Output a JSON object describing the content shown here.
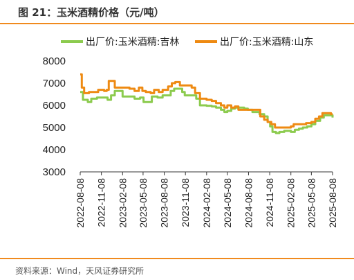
{
  "header": {
    "title": "图 21：玉米酒精价格（元/吨）"
  },
  "footer": {
    "source": "资料来源：Wind，天风证券研究所"
  },
  "colors": {
    "accent": "#F08A1E",
    "jilin": "#8CCB4E",
    "shandong": "#EE8A12"
  },
  "chart_data": {
    "type": "line",
    "title": "",
    "xlabel": "",
    "ylabel": "",
    "ylim": [
      3000,
      8000
    ],
    "yticks": [
      3000,
      4000,
      5000,
      6000,
      7000,
      8000
    ],
    "xticks": [
      "2022-08-08",
      "2022-11-08",
      "2023-02-08",
      "2023-05-08",
      "2023-08-08",
      "2023-11-08",
      "2024-02-08",
      "2024-05-08",
      "2024-08-08",
      "2024-11-08",
      "2025-02-08",
      "2025-05-08",
      "2025-08-08"
    ],
    "xlim": [
      "2022-08-08",
      "2025-08-08"
    ],
    "legend": "top",
    "grid": false,
    "series": [
      {
        "name": "出厂价:玉米酒精:吉林",
        "color": "#8CCB4E",
        "points": [
          [
            "2022-08-08",
            6600
          ],
          [
            "2022-08-20",
            6250
          ],
          [
            "2022-09-10",
            6150
          ],
          [
            "2022-09-25",
            6300
          ],
          [
            "2022-10-20",
            6350
          ],
          [
            "2022-11-20",
            6350
          ],
          [
            "2022-12-05",
            6250
          ],
          [
            "2022-12-20",
            6450
          ],
          [
            "2023-01-05",
            6650
          ],
          [
            "2023-01-25",
            6650
          ],
          [
            "2023-02-08",
            6400
          ],
          [
            "2023-03-20",
            6400
          ],
          [
            "2023-04-01",
            6300
          ],
          [
            "2023-04-25",
            6350
          ],
          [
            "2023-05-10",
            6150
          ],
          [
            "2023-06-01",
            6150
          ],
          [
            "2023-06-15",
            6400
          ],
          [
            "2023-07-10",
            6350
          ],
          [
            "2023-08-01",
            6450
          ],
          [
            "2023-08-20",
            6450
          ],
          [
            "2023-09-05",
            6650
          ],
          [
            "2023-09-20",
            6750
          ],
          [
            "2023-10-10",
            6750
          ],
          [
            "2023-10-25",
            6600
          ],
          [
            "2023-11-05",
            6450
          ],
          [
            "2023-12-10",
            6450
          ],
          [
            "2023-12-25",
            6300
          ],
          [
            "2024-01-10",
            6000
          ],
          [
            "2024-02-08",
            5980
          ],
          [
            "2024-03-01",
            5950
          ],
          [
            "2024-03-20",
            5900
          ],
          [
            "2024-04-10",
            5800
          ],
          [
            "2024-04-25",
            5700
          ],
          [
            "2024-05-08",
            5750
          ],
          [
            "2024-05-25",
            5850
          ],
          [
            "2024-06-10",
            5900
          ],
          [
            "2024-07-01",
            5900
          ],
          [
            "2024-07-20",
            5850
          ],
          [
            "2024-08-05",
            5800
          ],
          [
            "2024-08-25",
            5700
          ],
          [
            "2024-09-10",
            5700
          ],
          [
            "2024-09-25",
            5600
          ],
          [
            "2024-10-15",
            5500
          ],
          [
            "2024-10-30",
            5250
          ],
          [
            "2024-11-10",
            5050
          ],
          [
            "2024-11-20",
            4800
          ],
          [
            "2024-12-05",
            4750
          ],
          [
            "2024-12-20",
            4800
          ],
          [
            "2025-01-10",
            4850
          ],
          [
            "2025-02-08",
            4800
          ],
          [
            "2025-02-25",
            4900
          ],
          [
            "2025-03-15",
            4950
          ],
          [
            "2025-04-01",
            5000
          ],
          [
            "2025-04-20",
            5050
          ],
          [
            "2025-05-08",
            5150
          ],
          [
            "2025-05-25",
            5300
          ],
          [
            "2025-06-15",
            5450
          ],
          [
            "2025-07-01",
            5550
          ],
          [
            "2025-07-20",
            5550
          ],
          [
            "2025-08-08",
            5450
          ]
        ]
      },
      {
        "name": "出厂价:玉米酒精:山东",
        "color": "#EE8A12",
        "points": [
          [
            "2022-08-08",
            7400
          ],
          [
            "2022-08-15",
            6800
          ],
          [
            "2022-08-25",
            6550
          ],
          [
            "2022-09-15",
            6600
          ],
          [
            "2022-10-10",
            6600
          ],
          [
            "2022-10-25",
            6700
          ],
          [
            "2022-11-20",
            6650
          ],
          [
            "2022-12-01",
            6700
          ],
          [
            "2022-12-10",
            7100
          ],
          [
            "2022-12-25",
            7100
          ],
          [
            "2023-01-05",
            6800
          ],
          [
            "2023-02-08",
            6800
          ],
          [
            "2023-03-10",
            6750
          ],
          [
            "2023-04-01",
            6650
          ],
          [
            "2023-04-20",
            6800
          ],
          [
            "2023-05-05",
            6650
          ],
          [
            "2023-05-20",
            6600
          ],
          [
            "2023-06-10",
            6550
          ],
          [
            "2023-06-25",
            6700
          ],
          [
            "2023-07-15",
            6600
          ],
          [
            "2023-08-01",
            6700
          ],
          [
            "2023-08-25",
            6850
          ],
          [
            "2023-09-10",
            7000
          ],
          [
            "2023-09-25",
            7050
          ],
          [
            "2023-10-15",
            6900
          ],
          [
            "2023-11-08",
            6900
          ],
          [
            "2023-12-05",
            6800
          ],
          [
            "2023-12-20",
            6550
          ],
          [
            "2024-01-10",
            6300
          ],
          [
            "2024-02-08",
            6250
          ],
          [
            "2024-03-01",
            6200
          ],
          [
            "2024-03-20",
            6100
          ],
          [
            "2024-04-10",
            6000
          ],
          [
            "2024-04-25",
            5900
          ],
          [
            "2024-05-08",
            6000
          ],
          [
            "2024-05-25",
            5900
          ],
          [
            "2024-06-10",
            5950
          ],
          [
            "2024-06-25",
            5800
          ],
          [
            "2024-07-20",
            5800
          ],
          [
            "2024-08-08",
            5800
          ],
          [
            "2024-08-25",
            5800
          ],
          [
            "2024-09-15",
            5800
          ],
          [
            "2024-09-28",
            5500
          ],
          [
            "2024-10-15",
            5350
          ],
          [
            "2024-10-30",
            5250
          ],
          [
            "2024-11-15",
            5150
          ],
          [
            "2024-12-01",
            5000
          ],
          [
            "2024-12-20",
            5000
          ],
          [
            "2025-01-15",
            5000
          ],
          [
            "2025-02-08",
            5050
          ],
          [
            "2025-02-20",
            5150
          ],
          [
            "2025-03-15",
            5150
          ],
          [
            "2025-04-15",
            5200
          ],
          [
            "2025-05-08",
            5250
          ],
          [
            "2025-05-25",
            5400
          ],
          [
            "2025-06-10",
            5500
          ],
          [
            "2025-06-25",
            5650
          ],
          [
            "2025-07-15",
            5650
          ],
          [
            "2025-08-01",
            5600
          ],
          [
            "2025-08-08",
            5600
          ]
        ]
      }
    ]
  }
}
